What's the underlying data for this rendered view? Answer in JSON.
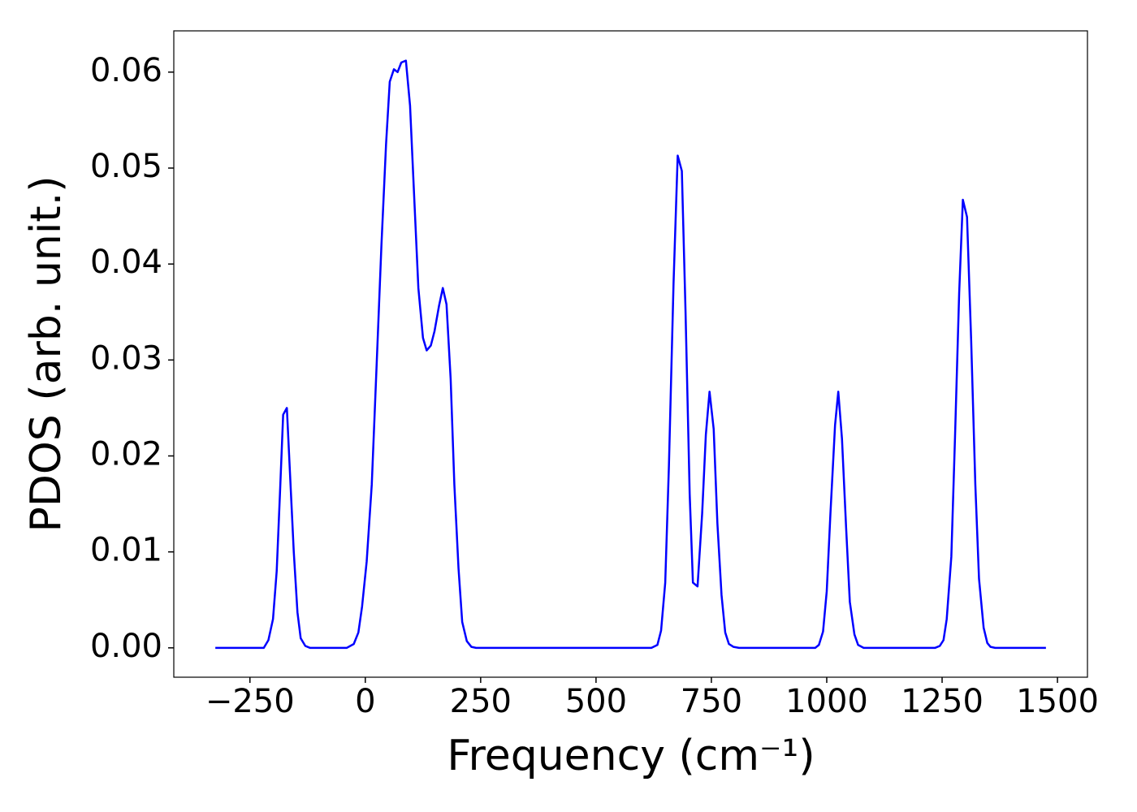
{
  "chart_data": {
    "type": "line",
    "xlabel": "Frequency (cm⁻¹)",
    "ylabel": "PDOS (arb. unit.)",
    "xlim": [
      -415,
      1565
    ],
    "ylim": [
      -0.00306,
      0.0643
    ],
    "xticks": [
      {
        "value": -250,
        "label": "−250"
      },
      0,
      250,
      500,
      750,
      1000,
      1250,
      1500
    ],
    "yticks": [
      {
        "value": 0,
        "label": "0.00"
      },
      0.01,
      0.02,
      0.03,
      0.04,
      0.05,
      0.06
    ],
    "x": [
      -325,
      -220,
      -210,
      -200,
      -192,
      -185,
      -178,
      -170,
      -163,
      -155,
      -147,
      -140,
      -130,
      -120,
      -40,
      -25,
      -15,
      -7,
      3,
      14,
      25,
      35,
      45,
      53,
      62,
      70,
      78,
      88,
      97,
      105,
      115,
      125,
      133,
      142,
      150,
      160,
      168,
      176,
      185,
      193,
      202,
      210,
      220,
      230,
      240,
      620,
      633,
      641,
      650,
      658,
      668,
      677,
      686,
      694,
      703,
      710,
      720,
      730,
      738,
      746,
      755,
      763,
      772,
      780,
      788,
      798,
      810,
      975,
      983,
      992,
      1000,
      1008,
      1018,
      1025,
      1033,
      1042,
      1050,
      1060,
      1068,
      1080,
      1235,
      1245,
      1253,
      1260,
      1270,
      1278,
      1287,
      1295,
      1304,
      1313,
      1322,
      1330,
      1340,
      1348,
      1355,
      1365,
      1475
    ],
    "series": [
      {
        "color": "#0000ff",
        "values": [
          0,
          0,
          0.0008,
          0.003,
          0.008,
          0.016,
          0.0243,
          0.025,
          0.018,
          0.01,
          0.0037,
          0.001,
          0.0002,
          0,
          0,
          0.0004,
          0.0016,
          0.0043,
          0.009,
          0.017,
          0.03,
          0.042,
          0.0525,
          0.059,
          0.0603,
          0.06,
          0.061,
          0.0612,
          0.0565,
          0.048,
          0.0375,
          0.0323,
          0.031,
          0.0315,
          0.033,
          0.0357,
          0.0375,
          0.0358,
          0.028,
          0.017,
          0.0083,
          0.0027,
          0.0007,
          0.0001,
          0,
          0,
          0.0003,
          0.0018,
          0.0068,
          0.019,
          0.038,
          0.0513,
          0.0497,
          0.035,
          0.016,
          0.0068,
          0.0064,
          0.014,
          0.0222,
          0.0267,
          0.0228,
          0.013,
          0.0055,
          0.0016,
          0.0004,
          0.0001,
          0,
          0,
          0.0003,
          0.0017,
          0.0059,
          0.014,
          0.0232,
          0.0267,
          0.0218,
          0.0125,
          0.0048,
          0.0014,
          0.0003,
          0,
          0,
          0.0002,
          0.0008,
          0.003,
          0.0095,
          0.022,
          0.037,
          0.0467,
          0.0449,
          0.032,
          0.017,
          0.0072,
          0.0021,
          0.0005,
          0.0001,
          0,
          0
        ]
      }
    ]
  }
}
